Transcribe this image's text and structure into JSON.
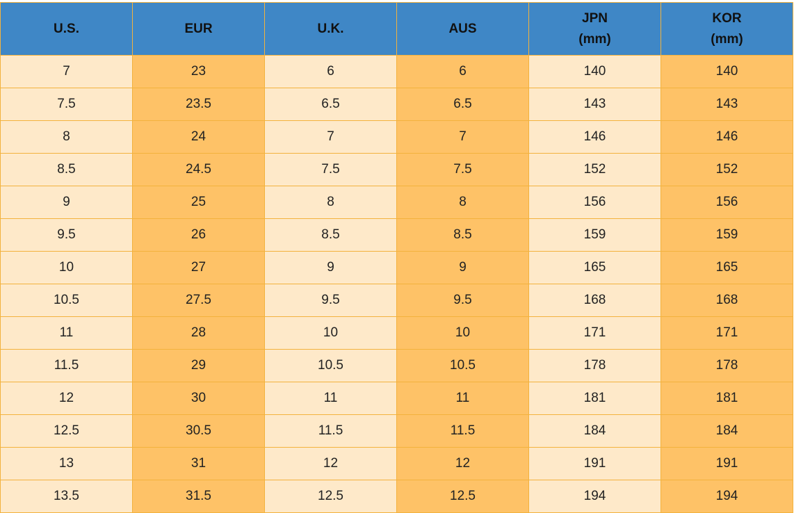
{
  "table": {
    "headers": [
      [
        "U.S."
      ],
      [
        "EUR"
      ],
      [
        "U.K."
      ],
      [
        "AUS"
      ],
      [
        "JPN",
        "(mm)"
      ],
      [
        "KOR",
        "(mm)"
      ]
    ],
    "rows": [
      [
        "7",
        "23",
        "6",
        "6",
        "140",
        "140"
      ],
      [
        "7.5",
        "23.5",
        "6.5",
        "6.5",
        "143",
        "143"
      ],
      [
        "8",
        "24",
        "7",
        "7",
        "146",
        "146"
      ],
      [
        "8.5",
        "24.5",
        "7.5",
        "7.5",
        "152",
        "152"
      ],
      [
        "9",
        "25",
        "8",
        "8",
        "156",
        "156"
      ],
      [
        "9.5",
        "26",
        "8.5",
        "8.5",
        "159",
        "159"
      ],
      [
        "10",
        "27",
        "9",
        "9",
        "165",
        "165"
      ],
      [
        "10.5",
        "27.5",
        "9.5",
        "9.5",
        "168",
        "168"
      ],
      [
        "11",
        "28",
        "10",
        "10",
        "171",
        "171"
      ],
      [
        "11.5",
        "29",
        "10.5",
        "10.5",
        "178",
        "178"
      ],
      [
        "12",
        "30",
        "11",
        "11",
        "181",
        "181"
      ],
      [
        "12.5",
        "30.5",
        "11.5",
        "11.5",
        "184",
        "184"
      ],
      [
        "13",
        "31",
        "12",
        "12",
        "191",
        "191"
      ],
      [
        "13.5",
        "31.5",
        "12.5",
        "12.5",
        "194",
        "194"
      ]
    ]
  },
  "colors": {
    "header_background": "#3f87c6",
    "light_column": "#fee9c9",
    "dark_column": "#fec267",
    "border": "#f3b23d"
  }
}
